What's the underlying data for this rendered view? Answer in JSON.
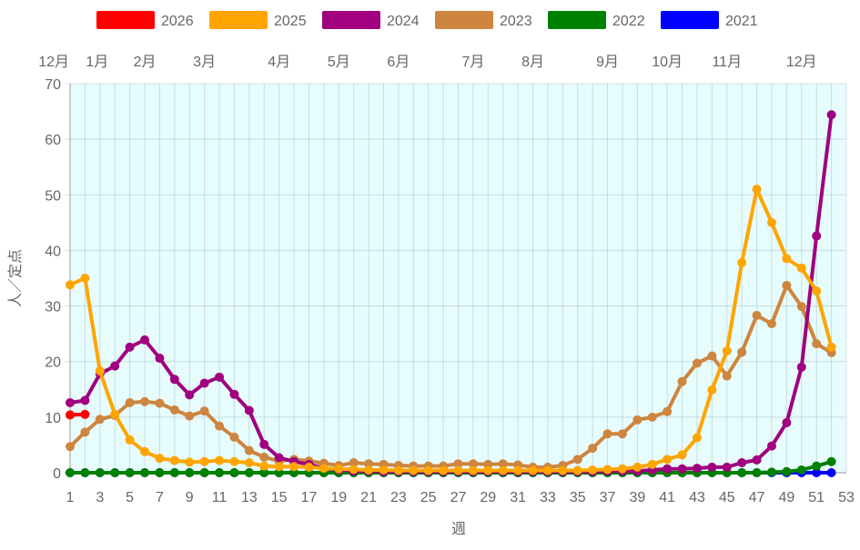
{
  "chart_data": {
    "type": "line",
    "title": "",
    "xlabel": "週",
    "ylabel": "人／定点",
    "xlim": [
      1,
      53
    ],
    "ylim": [
      0,
      70
    ],
    "x_ticks": [
      1,
      3,
      5,
      7,
      9,
      11,
      13,
      15,
      17,
      19,
      21,
      23,
      25,
      27,
      29,
      31,
      33,
      35,
      37,
      39,
      41,
      43,
      45,
      47,
      49,
      51,
      53
    ],
    "y_ticks": [
      0,
      10,
      20,
      30,
      40,
      50,
      60,
      70
    ],
    "grid": true,
    "legend_position": "top",
    "plot_background": "#e6fcfd",
    "month_labels": [
      {
        "label": "12月",
        "week": 1
      },
      {
        "label": "1月",
        "week": 2
      },
      {
        "label": "2月",
        "week": 6
      },
      {
        "label": "3月",
        "week": 10
      },
      {
        "label": "4月",
        "week": 15
      },
      {
        "label": "5月",
        "week": 19
      },
      {
        "label": "6月",
        "week": 23
      },
      {
        "label": "7月",
        "week": 28
      },
      {
        "label": "8月",
        "week": 32
      },
      {
        "label": "9月",
        "week": 37
      },
      {
        "label": "10月",
        "week": 41
      },
      {
        "label": "11月",
        "week": 45
      },
      {
        "label": "12月",
        "week": 50
      }
    ],
    "series": [
      {
        "name": "2026",
        "color": "#ff0000",
        "values": [
          10.4,
          10.5
        ]
      },
      {
        "name": "2025",
        "color": "#ffa500",
        "values": [
          33.8,
          35,
          18.3,
          10.5,
          5.9,
          3.8,
          2.6,
          2.2,
          1.9,
          2,
          2.2,
          2,
          1.8,
          1.2,
          1.1,
          1.1,
          1,
          0.8,
          0.7,
          0.6,
          0.5,
          0.5,
          0.4,
          0.4,
          0.4,
          0.4,
          0.4,
          0.4,
          0.4,
          0.4,
          0.4,
          0.4,
          0.4,
          0.4,
          0.4,
          0.5,
          0.6,
          0.7,
          1,
          1.5,
          2.4,
          3.2,
          6.3,
          14.9,
          21.9,
          37.8,
          51,
          45,
          38.5,
          36.8,
          32.7,
          22.6
        ]
      },
      {
        "name": "2024",
        "color": "#a0007f",
        "values": [
          12.6,
          13,
          17.8,
          19.2,
          22.6,
          23.9,
          20.6,
          16.8,
          14,
          16.1,
          17.2,
          14.1,
          11.2,
          5.1,
          2.7,
          2,
          1.5,
          0.8,
          0.5,
          0.3,
          0.3,
          0.2,
          0.2,
          0.2,
          0.2,
          0.2,
          0.2,
          0.2,
          0.2,
          0.2,
          0.2,
          0.2,
          0.2,
          0.2,
          0.2,
          0.2,
          0.3,
          0.3,
          0.3,
          0.5,
          0.7,
          0.7,
          0.8,
          1,
          1,
          1.8,
          2.3,
          4.8,
          9,
          19,
          42.6,
          64.4
        ]
      },
      {
        "name": "2023",
        "color": "#cd853f",
        "values": [
          4.7,
          7.3,
          9.6,
          10.3,
          12.6,
          12.8,
          12.5,
          11.3,
          10.2,
          11.1,
          8.4,
          6.4,
          4,
          2.8,
          2.1,
          2.4,
          2.1,
          1.7,
          1.3,
          1.8,
          1.6,
          1.5,
          1.3,
          1.2,
          1.2,
          1.2,
          1.6,
          1.6,
          1.5,
          1.6,
          1.4,
          1,
          1,
          1.3,
          2.4,
          4.4,
          7,
          7,
          9.5,
          10,
          11,
          16.4,
          19.7,
          21,
          17.4,
          21.7,
          28.3,
          26.8,
          33.7,
          29.9,
          23.2,
          21.6
        ]
      },
      {
        "name": "2022",
        "color": "#008000",
        "values": [
          0,
          0,
          0,
          0,
          0,
          0,
          0,
          0,
          0,
          0,
          0,
          0,
          0,
          0,
          0,
          0,
          0,
          0,
          0,
          0,
          0,
          0,
          0,
          0,
          0,
          0,
          0,
          0,
          0,
          0,
          0,
          0,
          0,
          0,
          0,
          0,
          0,
          0,
          0,
          0,
          0,
          0,
          0,
          0,
          0,
          0,
          0,
          0.1,
          0.2,
          0.5,
          1.2,
          2
        ]
      },
      {
        "name": "2021",
        "color": "#0000ff",
        "values": [
          0,
          0,
          0,
          0,
          0,
          0,
          0,
          0,
          0,
          0,
          0,
          0,
          0,
          0,
          0,
          0,
          0,
          0,
          0,
          0,
          0,
          0,
          0,
          0,
          0,
          0,
          0,
          0,
          0,
          0,
          0,
          0,
          0,
          0,
          0,
          0,
          0,
          0,
          0,
          0,
          0,
          0,
          0,
          0,
          0,
          0,
          0,
          0,
          0,
          0,
          0,
          0
        ]
      }
    ]
  }
}
